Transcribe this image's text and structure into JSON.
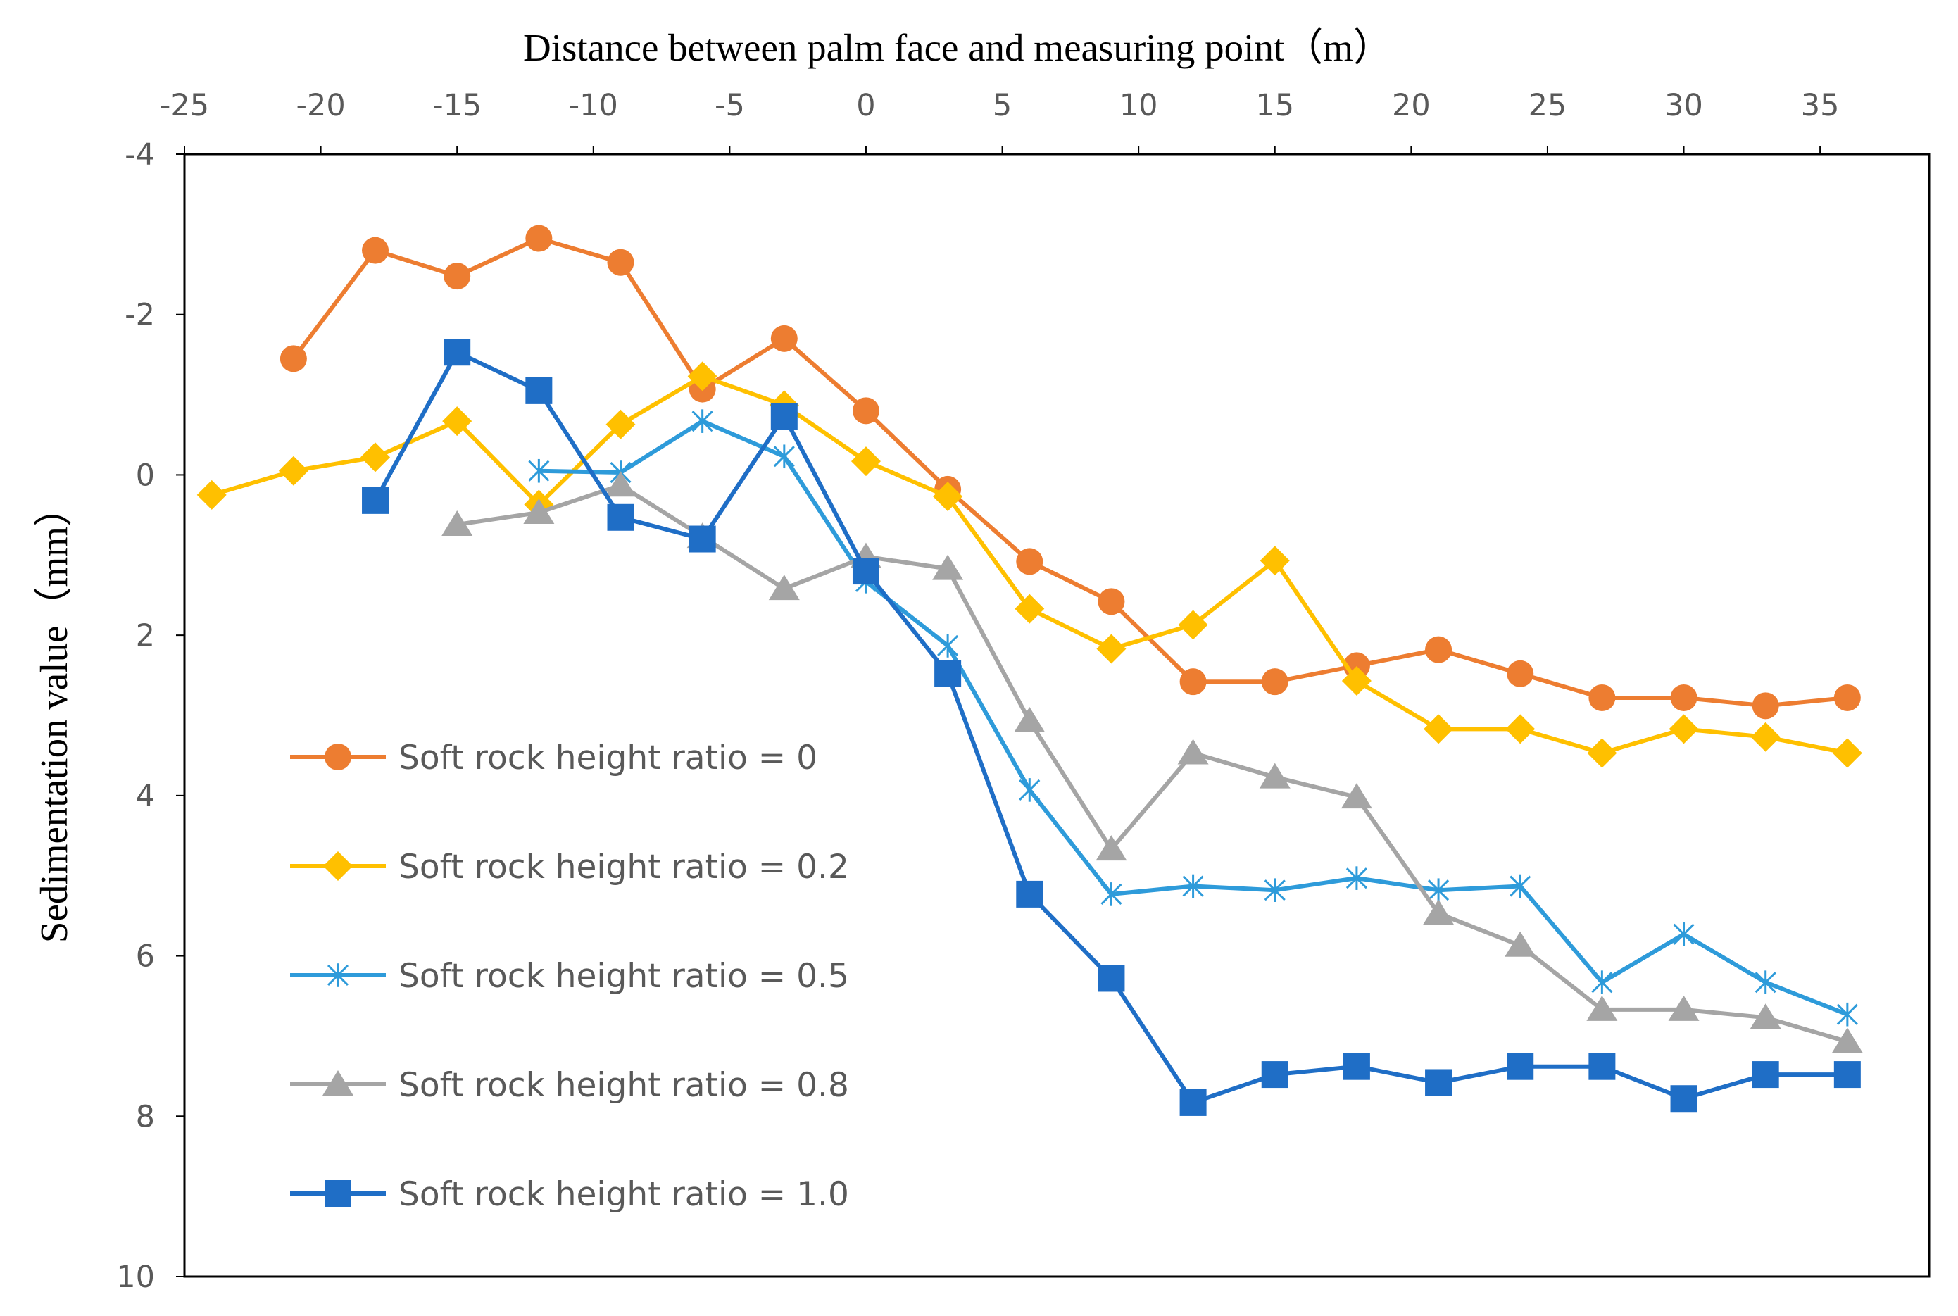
{
  "chart_data": {
    "type": "line",
    "xlabel": "Distance between palm face and measuring point（m）",
    "ylabel": "Sedimentation value（mm）",
    "x_axis_position": "top",
    "y_axis_inverted": true,
    "xlim": [
      -25,
      39
    ],
    "ylim": [
      -4,
      10
    ],
    "x_ticks": [
      -25,
      -20,
      -15,
      -10,
      -5,
      0,
      5,
      10,
      15,
      20,
      25,
      30,
      35
    ],
    "y_ticks": [
      -4,
      -2,
      0,
      2,
      4,
      6,
      8,
      10
    ],
    "x_tick_labels": [
      "-25",
      "-20",
      "-15",
      "-10",
      "-5",
      "0",
      "5",
      "10",
      "15",
      "20",
      "25",
      "30",
      "35"
    ],
    "y_tick_labels": [
      "-4",
      "-2",
      "0",
      "2",
      "4",
      "6",
      "8",
      "10"
    ],
    "legend_position": "left-center",
    "series": [
      {
        "name": "Soft rock height ratio = 0",
        "color": "#ED7D31",
        "marker": "circle",
        "x": [
          -21,
          -18,
          -15,
          -12,
          -9,
          -6,
          -3,
          0,
          3,
          6,
          9,
          12,
          15,
          18,
          21,
          24,
          27,
          30,
          33,
          36
        ],
        "y": [
          -1.45,
          -2.8,
          -2.48,
          -2.95,
          -2.65,
          -1.07,
          -1.7,
          -0.8,
          0.18,
          1.08,
          1.58,
          2.58,
          2.58,
          2.38,
          2.18,
          2.48,
          2.78,
          2.78,
          2.88,
          2.78
        ]
      },
      {
        "name": "Soft rock height ratio = 0.2",
        "color": "#FFC000",
        "marker": "diamond",
        "x": [
          -24,
          -21,
          -18,
          -15,
          -12,
          -9,
          -6,
          -3,
          0,
          3,
          6,
          9,
          12,
          15,
          18,
          21,
          24,
          27,
          30,
          33,
          36
        ],
        "y": [
          0.25,
          -0.05,
          -0.22,
          -0.67,
          0.37,
          -0.63,
          -1.23,
          -0.87,
          -0.17,
          0.27,
          1.67,
          2.17,
          1.87,
          1.07,
          2.57,
          3.17,
          3.17,
          3.47,
          3.17,
          3.27,
          3.47
        ]
      },
      {
        "name": "Soft rock height ratio = 0.5",
        "color": "#2E9BDA",
        "marker": "star",
        "x": [
          -12,
          -9,
          -6,
          -3,
          0,
          3,
          6,
          9,
          12,
          15,
          18,
          21,
          24,
          27,
          30,
          33,
          36
        ],
        "y": [
          -0.05,
          -0.03,
          -0.67,
          -0.23,
          1.33,
          2.13,
          3.93,
          5.23,
          5.13,
          5.18,
          5.03,
          5.18,
          5.13,
          6.33,
          5.73,
          6.33,
          6.73
        ]
      },
      {
        "name": "Soft rock height ratio = 0.8",
        "color": "#A5A5A5",
        "marker": "triangle",
        "x": [
          -15,
          -12,
          -9,
          -6,
          -3,
          0,
          3,
          6,
          9,
          12,
          15,
          18,
          21,
          24,
          27,
          30,
          33,
          36
        ],
        "y": [
          0.62,
          0.47,
          0.13,
          0.77,
          1.42,
          1.02,
          1.17,
          3.07,
          4.67,
          3.47,
          3.77,
          4.02,
          5.47,
          5.87,
          6.67,
          6.67,
          6.77,
          7.07
        ]
      },
      {
        "name": "Soft rock height ratio = 1.0",
        "color": "#1F6EC6",
        "marker": "square",
        "x": [
          -18,
          -15,
          -12,
          -9,
          -6,
          -3,
          0,
          3,
          6,
          9,
          12,
          15,
          18,
          21,
          24,
          27,
          30,
          33,
          36
        ],
        "y": [
          0.32,
          -1.53,
          -1.05,
          0.53,
          0.8,
          -0.73,
          1.2,
          2.48,
          5.23,
          6.28,
          7.83,
          7.48,
          7.38,
          7.58,
          7.38,
          7.38,
          7.78,
          7.48,
          7.48
        ]
      }
    ]
  }
}
